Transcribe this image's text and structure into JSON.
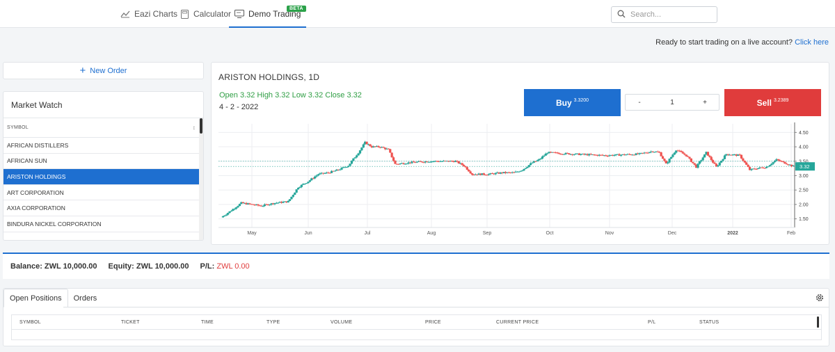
{
  "nav": {
    "tabs": [
      {
        "label": "Eazi Charts",
        "icon": "chart-icon"
      },
      {
        "label": "Calculator",
        "icon": "calculator-icon"
      },
      {
        "label": "Demo Trading",
        "icon": "monitor-icon",
        "badge": "BETA",
        "active": true
      }
    ],
    "search_placeholder": "Search..."
  },
  "live_prompt": {
    "text": "Ready to start trading on a live account?",
    "link": "Click here"
  },
  "new_order_label": "New Order",
  "market_watch": {
    "title": "Market Watch",
    "column_header": "SYMBOL",
    "sort_glyph": "↕",
    "symbols": [
      "AFRICAN DISTILLERS",
      "AFRICAN SUN",
      "ARISTON HOLDINGS",
      "ART CORPORATION",
      "AXIA CORPORATION",
      "BINDURA NICKEL CORPORATION"
    ],
    "selected": "ARISTON HOLDINGS"
  },
  "chart": {
    "title": "ARISTON HOLDINGS, 1D",
    "ohlc_text": "Open 3.32 High 3.32 Low 3.32 Close 3.32",
    "date_text": "4 - 2 - 2022",
    "buy": {
      "label": "Buy",
      "price": "3.3200"
    },
    "sell": {
      "label": "Sell",
      "price": "3.2389"
    },
    "quantity": {
      "minus": "-",
      "value": "1",
      "plus": "+"
    }
  },
  "chart_data": {
    "type": "candlestick",
    "title": "ARISTON HOLDINGS, 1D",
    "x_tick_labels": [
      "May",
      "Jun",
      "Jul",
      "Aug",
      "Sep",
      "Oct",
      "Nov",
      "Dec",
      "2022",
      "Feb"
    ],
    "y_tick_labels": [
      "1.50",
      "2.00",
      "2.50",
      "3.00",
      "3.50",
      "4.00",
      "4.50"
    ],
    "ylim": [
      1.2,
      4.75
    ],
    "last_price_label": "3.32",
    "last_price": 3.32,
    "reference_price": 3.5,
    "grid": true,
    "colors": {
      "up": "#26a69a",
      "down": "#ef5350"
    },
    "close_path": [
      [
        0,
        1.55
      ],
      [
        5,
        1.75
      ],
      [
        12,
        2.05
      ],
      [
        18,
        2.0
      ],
      [
        24,
        1.95
      ],
      [
        32,
        2.05
      ],
      [
        40,
        2.1
      ],
      [
        46,
        2.6
      ],
      [
        52,
        2.8
      ],
      [
        58,
        3.05
      ],
      [
        64,
        3.1
      ],
      [
        70,
        3.2
      ],
      [
        76,
        3.35
      ],
      [
        82,
        3.8
      ],
      [
        86,
        4.15
      ],
      [
        90,
        4.0
      ],
      [
        95,
        4.0
      ],
      [
        100,
        3.9
      ],
      [
        104,
        3.4
      ],
      [
        112,
        3.45
      ],
      [
        125,
        3.5
      ],
      [
        135,
        3.5
      ],
      [
        140,
        3.5
      ],
      [
        145,
        3.35
      ],
      [
        150,
        3.05
      ],
      [
        160,
        3.05
      ],
      [
        168,
        3.1
      ],
      [
        175,
        3.1
      ],
      [
        180,
        3.2
      ],
      [
        186,
        3.45
      ],
      [
        190,
        3.55
      ],
      [
        195,
        3.8
      ],
      [
        210,
        3.75
      ],
      [
        230,
        3.7
      ],
      [
        250,
        3.75
      ],
      [
        258,
        3.85
      ],
      [
        262,
        3.8
      ],
      [
        266,
        3.4
      ],
      [
        272,
        3.9
      ],
      [
        278,
        3.7
      ],
      [
        284,
        3.3
      ],
      [
        290,
        3.8
      ],
      [
        296,
        3.3
      ],
      [
        302,
        3.75
      ],
      [
        310,
        3.7
      ],
      [
        316,
        3.2
      ],
      [
        320,
        3.25
      ],
      [
        326,
        3.3
      ],
      [
        332,
        3.55
      ],
      [
        338,
        3.42
      ],
      [
        342,
        3.32
      ]
    ]
  },
  "account": {
    "balance_label": "Balance:",
    "balance_value": "ZWL 10,000.00",
    "equity_label": "Equity:",
    "equity_value": "ZWL 10,000.00",
    "pl_label": "P/L:",
    "pl_value": "ZWL 0.00"
  },
  "positions": {
    "tabs": [
      "Open Positions",
      "Orders"
    ],
    "columns": [
      "SYMBOL",
      "TICKET",
      "TIME",
      "TYPE",
      "VOLUME",
      "PRICE",
      "CURRENT PRICE",
      "P/L",
      "STATUS"
    ]
  }
}
